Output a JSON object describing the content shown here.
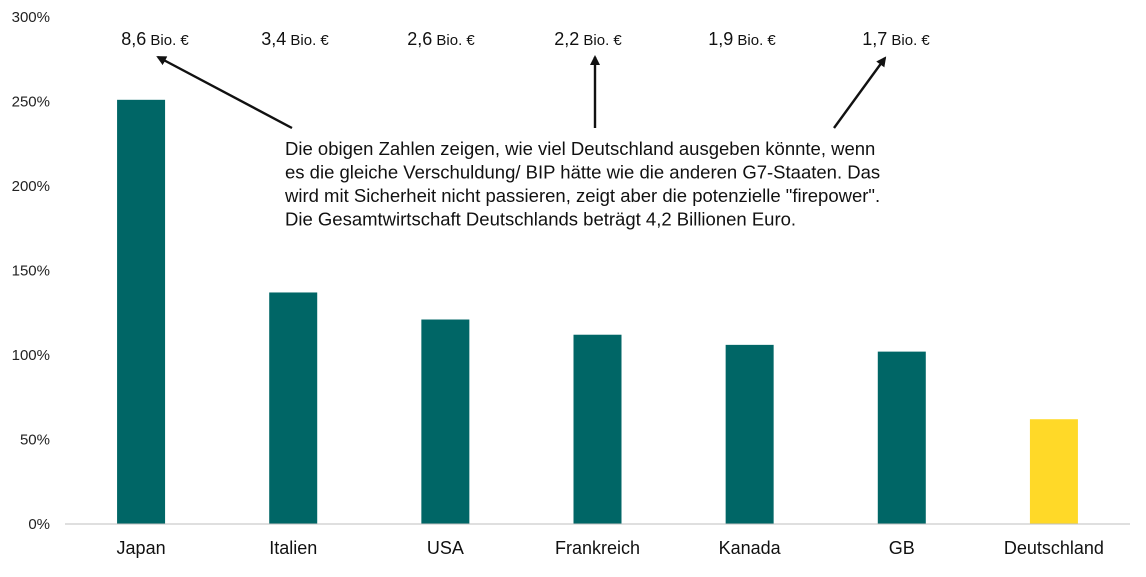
{
  "chart_data": {
    "type": "bar",
    "title": "",
    "xlabel": "",
    "ylabel": "",
    "categories": [
      "Japan",
      "Italien",
      "USA",
      "Frankreich",
      "Kanada",
      "GB",
      "Deutschland"
    ],
    "values": [
      251,
      137,
      121,
      112,
      106,
      102,
      62
    ],
    "ylim": [
      0,
      300
    ],
    "yticks": [
      "0%",
      "50%",
      "100%",
      "150%",
      "200%",
      "250%",
      "300%"
    ],
    "ytick_values": [
      0,
      50,
      100,
      150,
      200,
      250,
      300
    ],
    "bar_colors": [
      "#006666",
      "#006666",
      "#006666",
      "#006666",
      "#006666",
      "#006666",
      "#FFD928"
    ],
    "grid": false,
    "top_labels": [
      {
        "number": "8,6",
        "unit": "Bio. €"
      },
      {
        "number": "3,4",
        "unit": "Bio. €"
      },
      {
        "number": "2,6",
        "unit": "Bio. €"
      },
      {
        "number": "2,2",
        "unit": "Bio. €"
      },
      {
        "number": "1,9",
        "unit": "Bio. €"
      },
      {
        "number": "1,7",
        "unit": "Bio. €"
      }
    ],
    "annotation": {
      "lines": [
        "Die obigen Zahlen zeigen, wie viel Deutschland ausgeben könnte, wenn",
        "es die gleiche Verschuldung/ BIP hätte wie die anderen G7-Staaten. Das",
        "wird mit Sicherheit nicht passieren, zeigt aber die potenzielle \"firepower\".",
        "Die Gesamtwirtschaft Deutschlands beträgt 4,2 Billionen Euro."
      ]
    }
  }
}
